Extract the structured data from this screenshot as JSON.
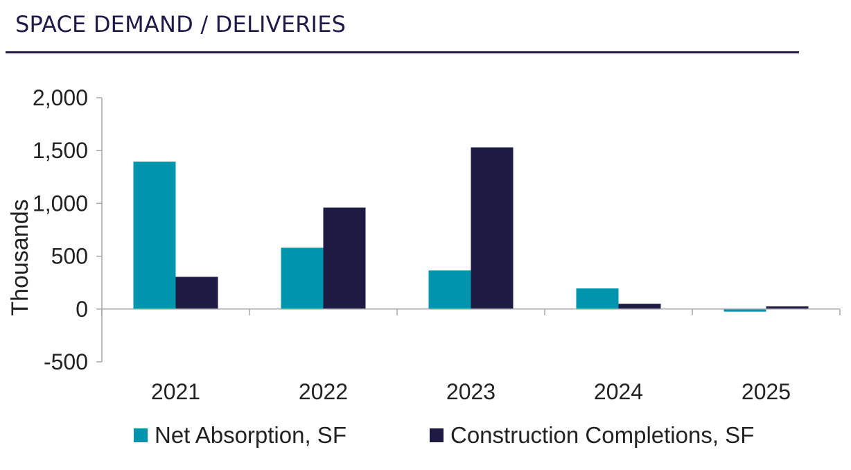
{
  "page": {
    "title": "SPACE DEMAND / DELIVERIES"
  },
  "colors": {
    "title": "#1f1a48",
    "net_absorption": "#0095ac",
    "construction_completions": "#1d1a44",
    "axis": "#a6a6a6",
    "text": "#222222"
  },
  "chart_data": {
    "type": "bar",
    "title": "SPACE DEMAND / DELIVERIES",
    "xlabel": "",
    "ylabel": "Thousands",
    "categories": [
      "2021",
      "2022",
      "2023",
      "2024",
      "2025"
    ],
    "series": [
      {
        "name": "Net Absorption, SF",
        "values": [
          1395,
          580,
          365,
          195,
          -25
        ]
      },
      {
        "name": "Construction Completions, SF",
        "values": [
          305,
          960,
          1530,
          50,
          25
        ]
      }
    ],
    "ylim": [
      -500,
      2000
    ],
    "yticks": [
      -500,
      0,
      500,
      1000,
      1500,
      2000
    ],
    "ytick_labels": [
      "-500",
      "0",
      "500",
      "1,000",
      "1,500",
      "2,000"
    ],
    "grid": false,
    "legend_position": "bottom"
  }
}
